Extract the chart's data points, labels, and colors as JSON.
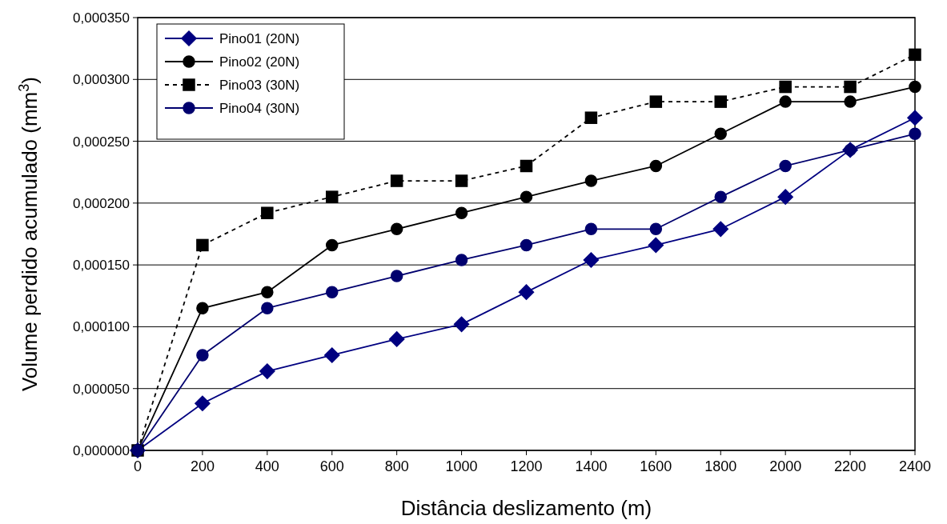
{
  "chart_data": {
    "type": "line",
    "xlabel": "Distância deslizamento (m)",
    "ylabel": "Volume perdido acumulado (mm$^{3}$)",
    "x": [
      0,
      200,
      400,
      600,
      800,
      1000,
      1200,
      1400,
      1600,
      1800,
      2000,
      2200,
      2400
    ],
    "xlim": [
      0,
      2400
    ],
    "xticks": [
      0,
      200,
      400,
      600,
      800,
      1000,
      1200,
      1400,
      1600,
      1800,
      2000,
      2200,
      2400
    ],
    "ylim": [
      0,
      0.00035
    ],
    "yticks": [
      {
        "value": 0,
        "label": "0,000000"
      },
      {
        "value": 5e-05,
        "label": "0,000050"
      },
      {
        "value": 0.0001,
        "label": "0,000100"
      },
      {
        "value": 0.00015,
        "label": "0,000150"
      },
      {
        "value": 0.0002,
        "label": "0,000200"
      },
      {
        "value": 0.00025,
        "label": "0,000250"
      },
      {
        "value": 0.0003,
        "label": "0,000300"
      },
      {
        "value": 0.00035,
        "label": "0,000350"
      }
    ],
    "grid": "y",
    "legend": "top left",
    "series": [
      {
        "name": "Pino01 (20N)",
        "color": "#000080",
        "marker": "diamond",
        "line_style": "solid",
        "values": [
          0,
          3.8e-05,
          6.4e-05,
          7.7e-05,
          9e-05,
          0.000102,
          0.000128,
          0.000154,
          0.000166,
          0.000179,
          0.000205,
          0.000243,
          0.000269
        ]
      },
      {
        "name": "Pino02 (20N)",
        "color": "#000000",
        "marker": "circle",
        "line_style": "solid",
        "values": [
          0,
          0.000115,
          0.000128,
          0.000166,
          0.000179,
          0.000192,
          0.000205,
          0.000218,
          0.00023,
          0.000256,
          0.000282,
          0.000282,
          0.000294
        ]
      },
      {
        "name": "Pino03 (30N)",
        "color": "#000000",
        "marker": "square",
        "line_style": "dashed",
        "values": [
          0,
          0.000166,
          0.000192,
          0.000205,
          0.000218,
          0.000218,
          0.00023,
          0.000269,
          0.000282,
          0.000282,
          0.000294,
          0.000294,
          0.00032
        ]
      },
      {
        "name": "Pino04 (30N)",
        "color": "#00006e",
        "marker": "circle",
        "line_style": "solid",
        "values": [
          0,
          7.7e-05,
          0.000115,
          0.000128,
          0.000141,
          0.000154,
          0.000166,
          0.000179,
          0.000179,
          0.000205,
          0.00023,
          0.000243,
          0.000256
        ]
      }
    ]
  }
}
